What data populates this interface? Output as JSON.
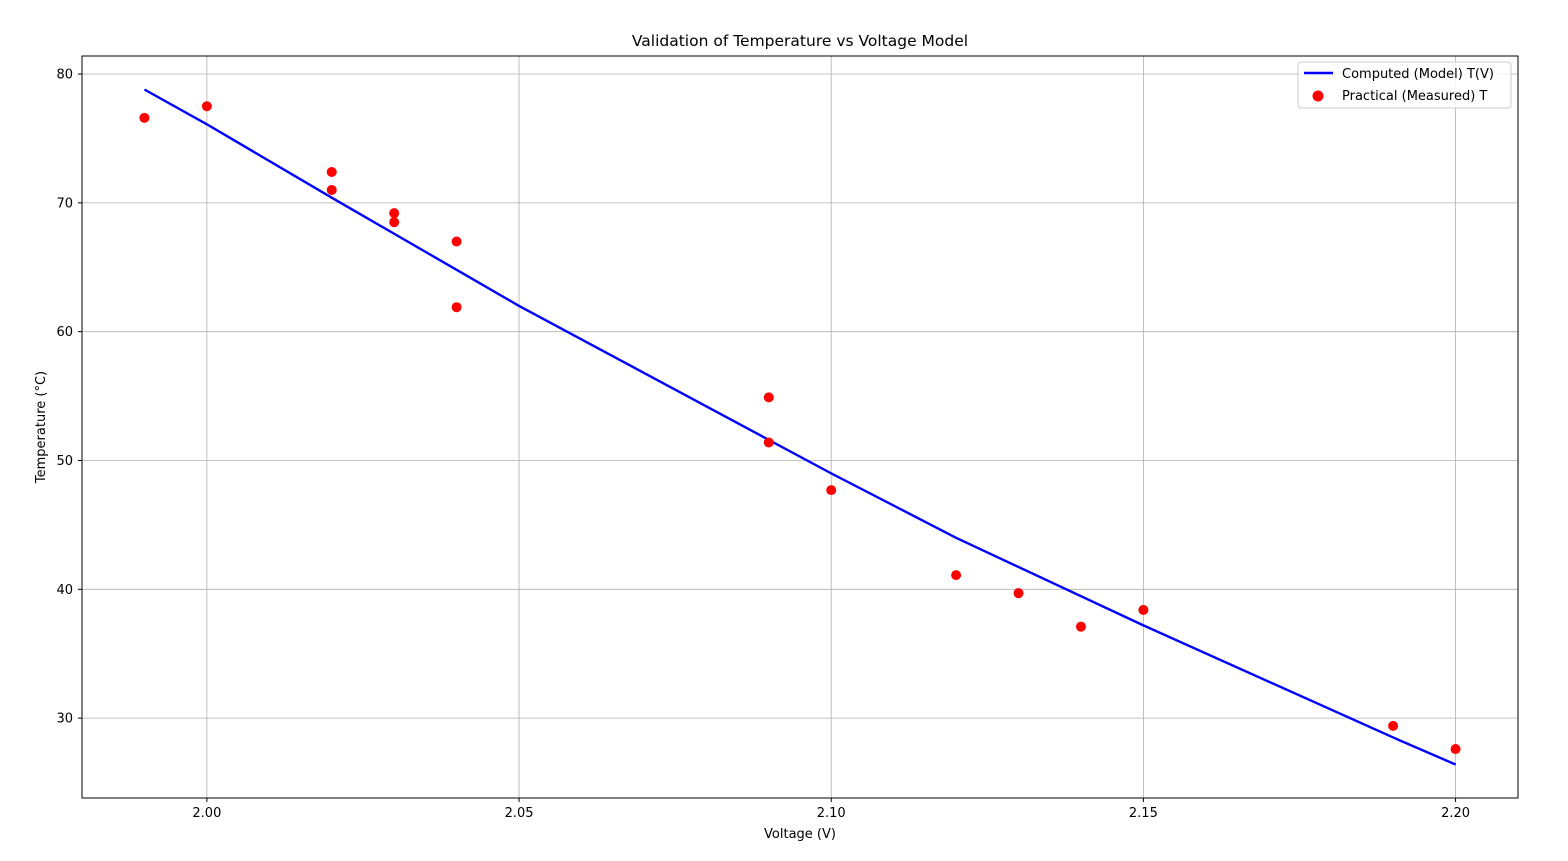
{
  "chart_data": {
    "type": "scatter",
    "title": "Validation of Temperature vs Voltage Model",
    "xlabel": "Voltage (V)",
    "ylabel": "Temperature (°C)",
    "xlim": [
      1.98,
      2.21
    ],
    "ylim": [
      23.8,
      81.4
    ],
    "xticks": [
      2.0,
      2.05,
      2.1,
      2.15,
      2.2
    ],
    "xtick_labels": [
      "2.00",
      "2.05",
      "2.10",
      "2.15",
      "2.20"
    ],
    "yticks": [
      30,
      40,
      50,
      60,
      70,
      80
    ],
    "ytick_labels": [
      "30",
      "40",
      "50",
      "60",
      "70",
      "80"
    ],
    "grid": true,
    "legend_position": "top-right",
    "series": [
      {
        "name": "Computed (Model) T(V)",
        "kind": "line",
        "color": "#0000ff",
        "x": [
          1.99,
          2.0,
          2.02,
          2.03,
          2.04,
          2.05,
          2.09,
          2.1,
          2.12,
          2.15,
          2.19,
          2.2
        ],
        "y": [
          78.8,
          76.1,
          70.4,
          67.6,
          64.8,
          62.0,
          51.6,
          49.0,
          44.0,
          37.2,
          28.5,
          26.4
        ]
      },
      {
        "name": "Practical (Measured) T",
        "kind": "scatter",
        "color": "#ff0000",
        "x": [
          1.99,
          2.0,
          2.02,
          2.02,
          2.03,
          2.03,
          2.04,
          2.04,
          2.09,
          2.09,
          2.1,
          2.12,
          2.13,
          2.14,
          2.15,
          2.19,
          2.2
        ],
        "y": [
          76.6,
          77.5,
          72.4,
          71.0,
          69.2,
          68.5,
          67.0,
          61.9,
          54.9,
          51.4,
          47.7,
          41.1,
          39.7,
          37.1,
          38.4,
          29.4,
          27.6
        ]
      }
    ]
  }
}
